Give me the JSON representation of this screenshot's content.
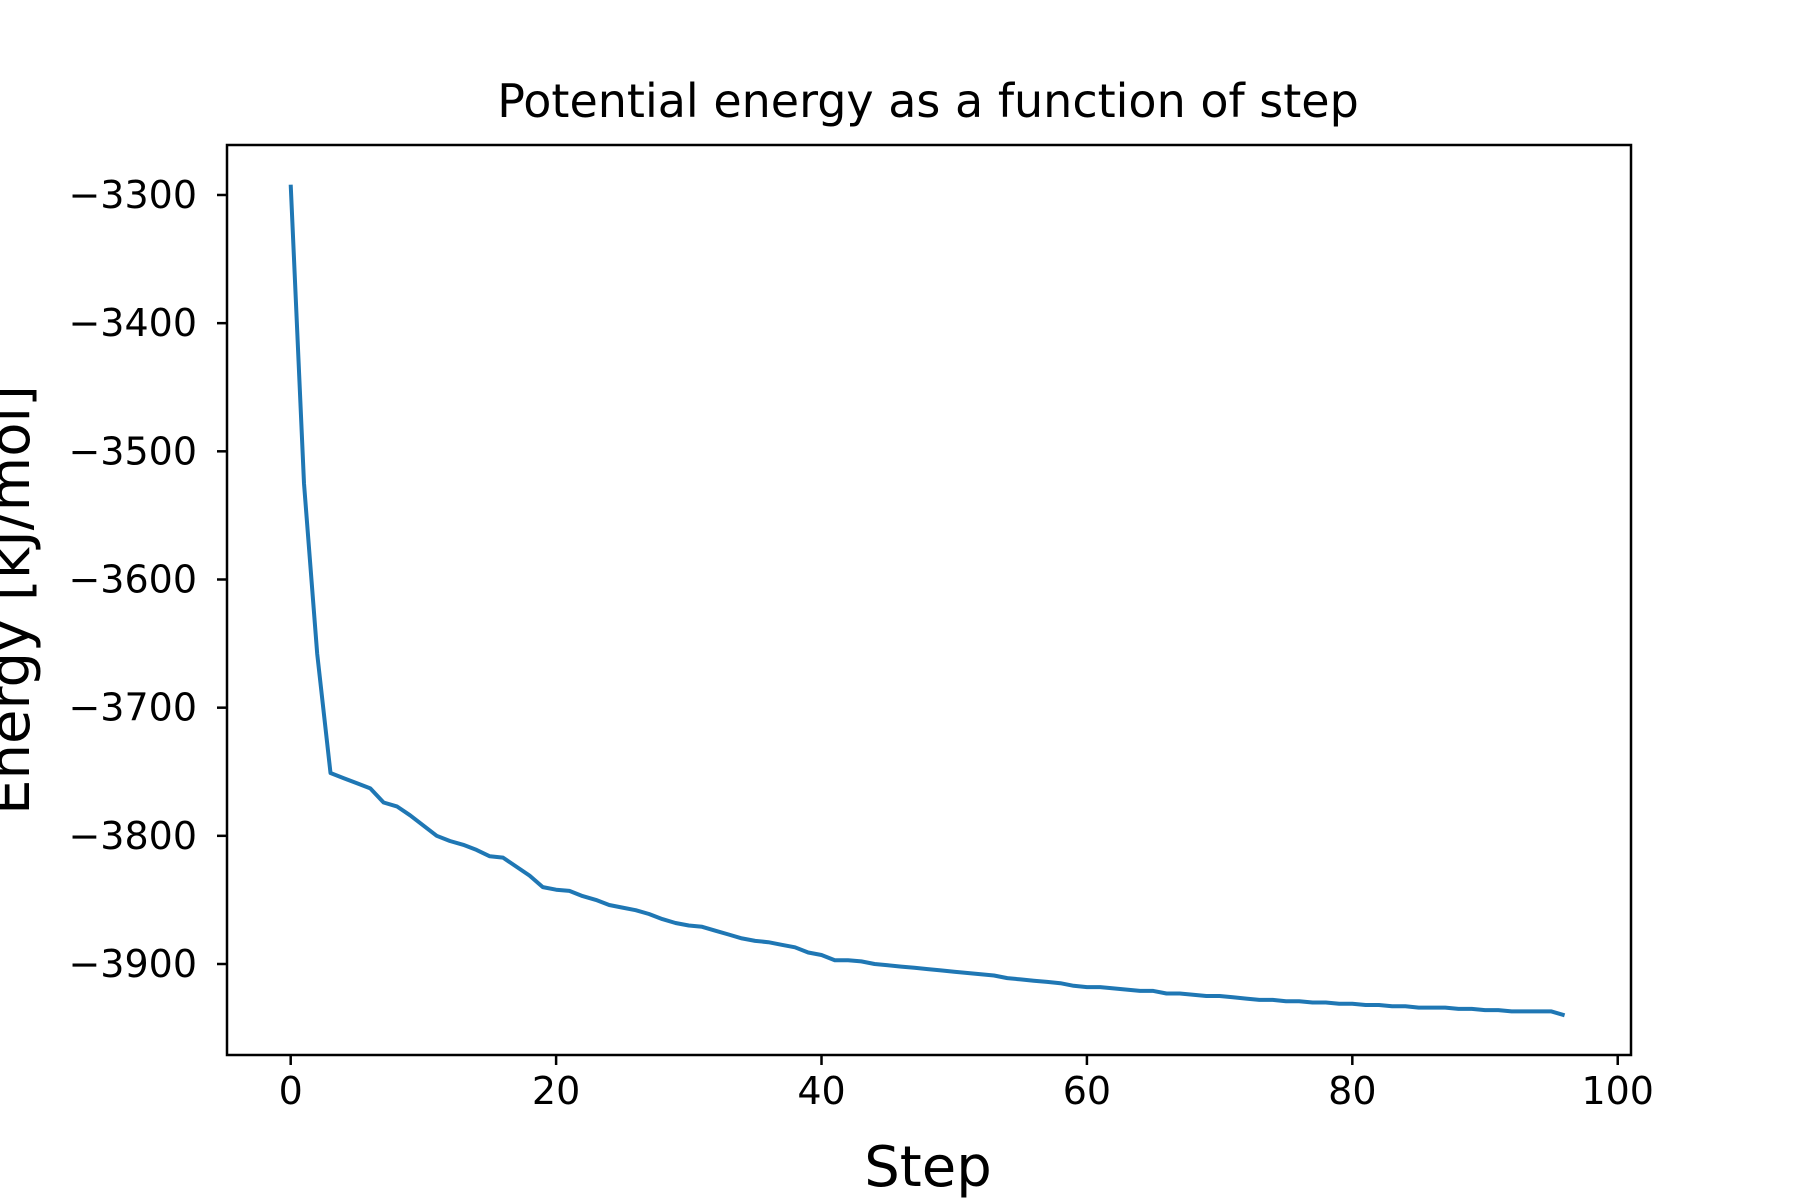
{
  "chart_data": {
    "type": "line",
    "title": "Potential energy as a function of step",
    "xlabel": "Step",
    "ylabel": "Energy [kJ/mol]",
    "xlim": [
      -4.8,
      101
    ],
    "ylim": [
      -3971,
      -3261
    ],
    "xticks": [
      0,
      20,
      40,
      60,
      80,
      100
    ],
    "xtick_labels": [
      "0",
      "20",
      "40",
      "60",
      "80",
      "100"
    ],
    "yticks": [
      -3300,
      -3400,
      -3500,
      -3600,
      -3700,
      -3800,
      -3900
    ],
    "ytick_labels": [
      "−3300",
      "−3400",
      "−3500",
      "−3600",
      "−3700",
      "−3800",
      "−3900"
    ],
    "grid": false,
    "legend": "none",
    "series": [
      {
        "color": "#1f77b4",
        "x": [
          0,
          1,
          2,
          3,
          4,
          5,
          6,
          7,
          8,
          9,
          10,
          11,
          12,
          13,
          14,
          15,
          16,
          17,
          18,
          19,
          20,
          21,
          22,
          23,
          24,
          25,
          26,
          27,
          28,
          29,
          30,
          31,
          32,
          33,
          34,
          35,
          36,
          37,
          38,
          39,
          40,
          41,
          42,
          43,
          44,
          45,
          46,
          47,
          48,
          49,
          50,
          51,
          52,
          53,
          54,
          55,
          56,
          57,
          58,
          59,
          60,
          61,
          62,
          63,
          64,
          65,
          66,
          67,
          68,
          69,
          70,
          71,
          72,
          73,
          74,
          75,
          76,
          77,
          78,
          79,
          80,
          81,
          82,
          83,
          84,
          85,
          86,
          87,
          88,
          89,
          90,
          91,
          92,
          93,
          94,
          95,
          96
        ],
        "y": [
          -3292,
          -3525,
          -3658,
          -3751,
          -3755,
          -3759,
          -3763,
          -3774,
          -3777,
          -3784,
          -3792,
          -3800,
          -3804,
          -3807,
          -3811,
          -3816,
          -3817,
          -3824,
          -3831,
          -3840,
          -3842,
          -3843,
          -3847,
          -3850,
          -3854,
          -3856,
          -3858,
          -3861,
          -3865,
          -3868,
          -3870,
          -3871,
          -3874,
          -3877,
          -3880,
          -3882,
          -3883,
          -3885,
          -3887,
          -3891,
          -3893,
          -3897,
          -3897,
          -3898,
          -3900,
          -3901,
          -3902,
          -3903,
          -3904,
          -3905,
          -3906,
          -3907,
          -3908,
          -3909,
          -3911,
          -3912,
          -3913,
          -3914,
          -3915,
          -3917,
          -3918,
          -3918,
          -3919,
          -3920,
          -3921,
          -3921,
          -3923,
          -3923,
          -3924,
          -3925,
          -3925,
          -3926,
          -3927,
          -3928,
          -3928,
          -3929,
          -3929,
          -3930,
          -3930,
          -3931,
          -3931,
          -3932,
          -3932,
          -3933,
          -3933,
          -3934,
          -3934,
          -3934,
          -3935,
          -3935,
          -3936,
          -3936,
          -3937,
          -3937,
          -3937,
          -3937,
          -3940
        ]
      }
    ]
  }
}
